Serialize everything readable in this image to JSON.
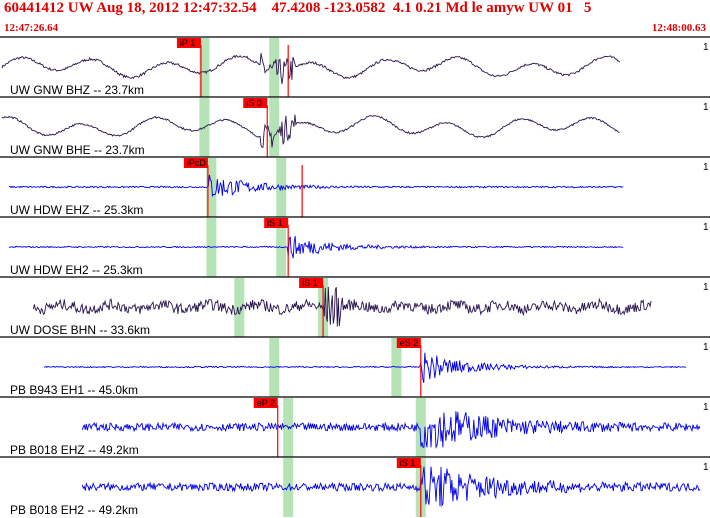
{
  "header": {
    "title": "60441412 UW Aug 18, 2012 12:47:32.54    47.4208 -123.0582  4.1 0.21 Md le amyw UW 01   5",
    "start_time": "12:47:26.64",
    "end_time": "12:48:00.63"
  },
  "colors": {
    "header_text": "#e00000",
    "pick_box": "#ff0000",
    "pick_line": "#ff0000",
    "window_band": "#b6e3b6",
    "trace_dark": "#2a1550",
    "trace_blue": "#0000ee",
    "divider": "#000000"
  },
  "chart_data": {
    "type": "line",
    "x_unit": "time (UTC)",
    "x_range": [
      "12:47:26.64",
      "12:48:00.63"
    ],
    "edge_label": "1",
    "traces": [
      {
        "name": "UW GNW BHZ -- 23.7km",
        "color": "dark",
        "style": "long",
        "start": 0.0,
        "end": 0.885,
        "onset": 0.38,
        "amp": 0.55,
        "noise": 0.08,
        "bands": [
          0.29,
          0.39
        ],
        "pick": {
          "label": "iP 1",
          "t": 0.285,
          "lines": [
            0.285,
            0.41
          ]
        }
      },
      {
        "name": "UW GNW BHE -- 23.7km",
        "color": "dark",
        "style": "long",
        "start": 0.0,
        "end": 0.885,
        "onset": 0.38,
        "amp": 0.5,
        "noise": 0.06,
        "bands": [
          0.29,
          0.39
        ],
        "pick": {
          "label": "iS 0",
          "t": 0.38,
          "lines": [
            0.38
          ]
        }
      },
      {
        "name": "UW HDW EHZ -- 25.3km",
        "color": "blue",
        "style": "burst",
        "start": 0.01,
        "end": 0.89,
        "onset": 0.295,
        "amp": 0.5,
        "noise": 0.05,
        "bands": [
          0.3,
          0.4
        ],
        "pick": {
          "label": "iPcD",
          "t": 0.295,
          "lines": [
            0.295,
            0.43
          ]
        }
      },
      {
        "name": "UW HDW EH2 -- 25.3km",
        "color": "blue",
        "style": "burst",
        "start": 0.01,
        "end": 0.89,
        "onset": 0.41,
        "amp": 0.45,
        "noise": 0.04,
        "bands": [
          0.3,
          0.4
        ],
        "pick": {
          "label": "iS 1",
          "t": 0.41,
          "lines": [
            0.41
          ]
        }
      },
      {
        "name": "UW DOSE BHN -- 33.6km",
        "color": "dark",
        "style": "noise",
        "start": 0.045,
        "end": 0.93,
        "onset": 0.46,
        "amp": 0.7,
        "noise": 0.35,
        "bands": [
          0.34,
          0.46
        ],
        "pick": {
          "label": "iS 1",
          "t": 0.46,
          "lines": [
            0.46
          ]
        }
      },
      {
        "name": "PB B943 EH1 -- 45.0km",
        "color": "blue",
        "style": "burst",
        "start": 0.06,
        "end": 0.98,
        "onset": 0.6,
        "amp": 0.6,
        "noise": 0.04,
        "bands": [
          0.39,
          0.565
        ],
        "pick": {
          "label": "eS 2",
          "t": 0.6,
          "lines": [
            0.6
          ]
        }
      },
      {
        "name": "PB B018 EHZ -- 49.2km",
        "color": "blue",
        "style": "noise2",
        "start": 0.115,
        "end": 1.0,
        "onset": 0.6,
        "amp": 0.7,
        "noise": 0.25,
        "bands": [
          0.41,
          0.6
        ],
        "pick": {
          "label": "eP 2",
          "t": 0.395,
          "lines": [
            0.395
          ]
        }
      },
      {
        "name": "PB B018 EH2 -- 49.2km",
        "color": "blue",
        "style": "noise2",
        "start": 0.115,
        "end": 1.0,
        "onset": 0.6,
        "amp": 0.7,
        "noise": 0.25,
        "bands": [
          0.41,
          0.6
        ],
        "pick": {
          "label": "iS 1",
          "t": 0.6,
          "lines": [
            0.6
          ]
        }
      }
    ]
  }
}
